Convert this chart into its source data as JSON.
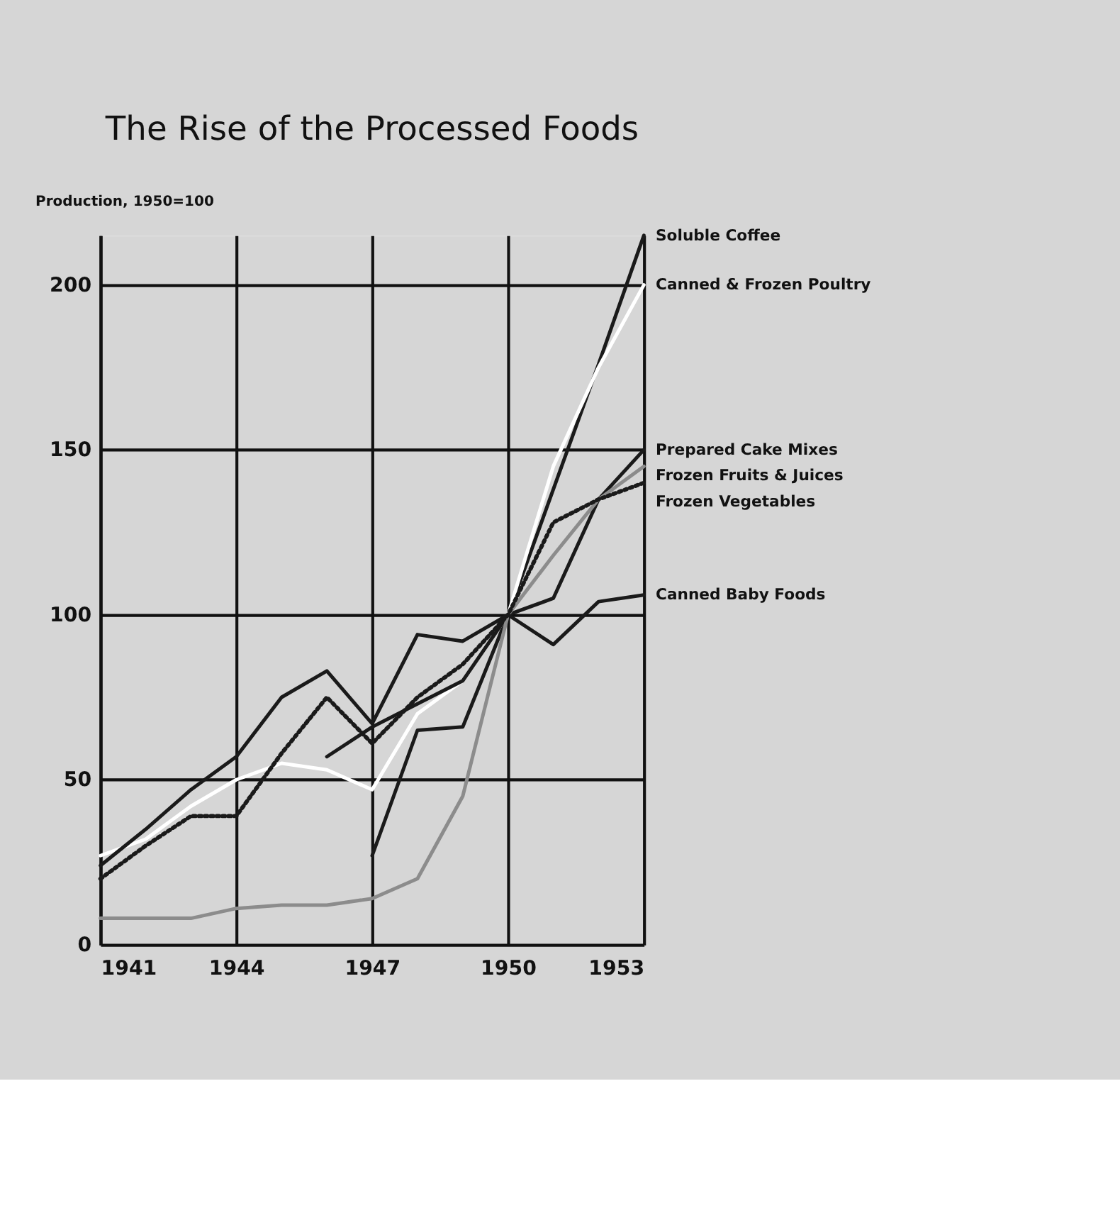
{
  "chart_data": {
    "type": "line",
    "title": "The Rise of the Processed Foods",
    "ylabel": "Production, 1950=100",
    "x": [
      1941,
      1942,
      1943,
      1944,
      1945,
      1946,
      1947,
      1948,
      1949,
      1950,
      1951,
      1952,
      1953
    ],
    "series": [
      {
        "name": "Soluble Coffee",
        "color": "#1a1a1a",
        "line_style": "solid",
        "values": [
          null,
          null,
          null,
          null,
          null,
          null,
          27,
          65,
          66,
          100,
          138,
          176,
          215
        ]
      },
      {
        "name": "Canned & Frozen Poultry",
        "color": "#ffffff",
        "line_style": "solid",
        "values": [
          27,
          32,
          42,
          50,
          55,
          53,
          47,
          70,
          80,
          100,
          145,
          175,
          200
        ]
      },
      {
        "name": "Prepared Cake Mixes",
        "color": "#1a1a1a",
        "line_style": "solid",
        "values": [
          null,
          null,
          null,
          null,
          null,
          57,
          66,
          73,
          80,
          100,
          105,
          135,
          150
        ]
      },
      {
        "name": "Frozen Fruits & Juices",
        "color": "#8c8c8c",
        "line_style": "solid",
        "values": [
          8,
          8,
          8,
          11,
          12,
          12,
          14,
          20,
          45,
          100,
          118,
          135,
          145
        ]
      },
      {
        "name": "Frozen Vegetables",
        "color": "#1a1a1a",
        "line_style": "dotted",
        "values": [
          20,
          30,
          39,
          39,
          58,
          75,
          61,
          75,
          85,
          100,
          128,
          135,
          140
        ]
      },
      {
        "name": "Canned Baby Foods",
        "color": "#1a1a1a",
        "line_style": "solid",
        "values": [
          24,
          35,
          47,
          57,
          75,
          83,
          67,
          94,
          92,
          100,
          91,
          104,
          106
        ]
      }
    ],
    "xlim": [
      1941,
      1953
    ],
    "xticks": [
      1941,
      1944,
      1947,
      1950,
      1953
    ],
    "ylim": [
      0,
      215
    ],
    "yticks": [
      0,
      50,
      100,
      150,
      200
    ],
    "grid": true,
    "marker": "none"
  }
}
